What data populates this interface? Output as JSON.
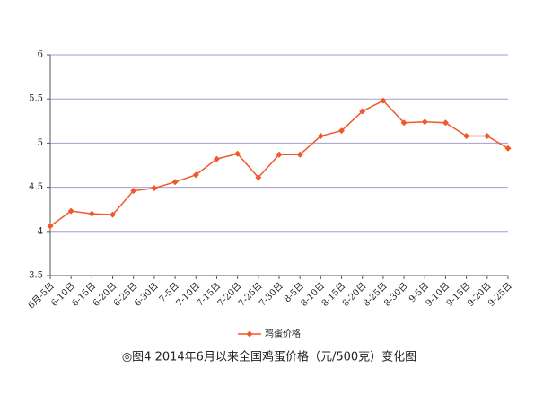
{
  "chart_data": {
    "type": "line",
    "caption": "◎图4 2014年6月以来全国鸡蛋价格（元/500克）变化图",
    "categories": [
      "6月-5日",
      "6-10日",
      "6-15日",
      "6-20日",
      "6-25日",
      "6-30日",
      "7-5日",
      "7-10日",
      "7-15日",
      "7-20日",
      "7-25日",
      "7-30日",
      "8-5日",
      "8-10日",
      "8-15日",
      "8-20日",
      "8-25日",
      "8-30日",
      "9-5日",
      "9-10日",
      "9-15日",
      "9-20日",
      "9-25日"
    ],
    "series": [
      {
        "name": "鸡蛋价格",
        "color": "#f0582a",
        "values": [
          4.06,
          4.23,
          4.2,
          4.19,
          4.46,
          4.49,
          4.56,
          4.64,
          4.82,
          4.88,
          4.61,
          4.87,
          4.87,
          5.08,
          5.14,
          5.36,
          5.48,
          5.23,
          5.24,
          5.23,
          5.08,
          5.08,
          4.94
        ]
      }
    ],
    "ylim": [
      3.5,
      6
    ],
    "yticks": [
      3.5,
      4,
      4.5,
      5,
      5.5,
      6
    ],
    "grid": true,
    "grid_color": "#a79bd0",
    "legend": "bottom"
  }
}
